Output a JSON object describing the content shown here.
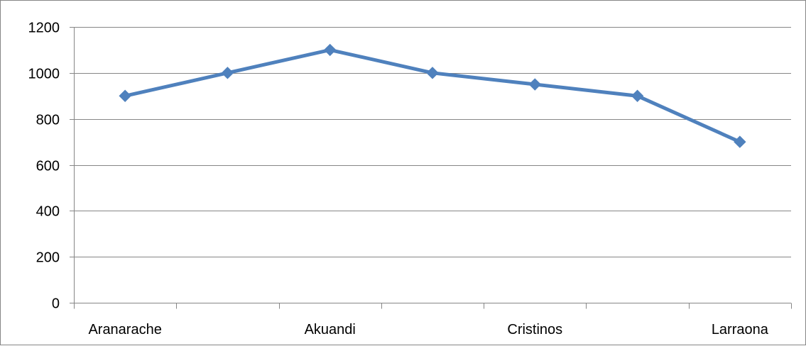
{
  "chart_data": {
    "type": "line",
    "title": "",
    "xlabel": "",
    "ylabel": "",
    "categories": [
      "Aranarache",
      "",
      "Akuandi",
      "",
      "Cristinos",
      "",
      "Larraona"
    ],
    "series": [
      {
        "values": [
          900,
          1000,
          1100,
          1000,
          950,
          900,
          700
        ],
        "color": "#4F81BD",
        "marker": "diamond"
      }
    ],
    "ylim": [
      0,
      1200
    ],
    "yticks": [
      0,
      200,
      400,
      600,
      800,
      1000,
      1200
    ],
    "grid": "horizontal",
    "legend": "none",
    "colors": {
      "line": "#4F81BD",
      "gridline": "#868686",
      "axis": "#868686",
      "text": "#000000"
    }
  }
}
